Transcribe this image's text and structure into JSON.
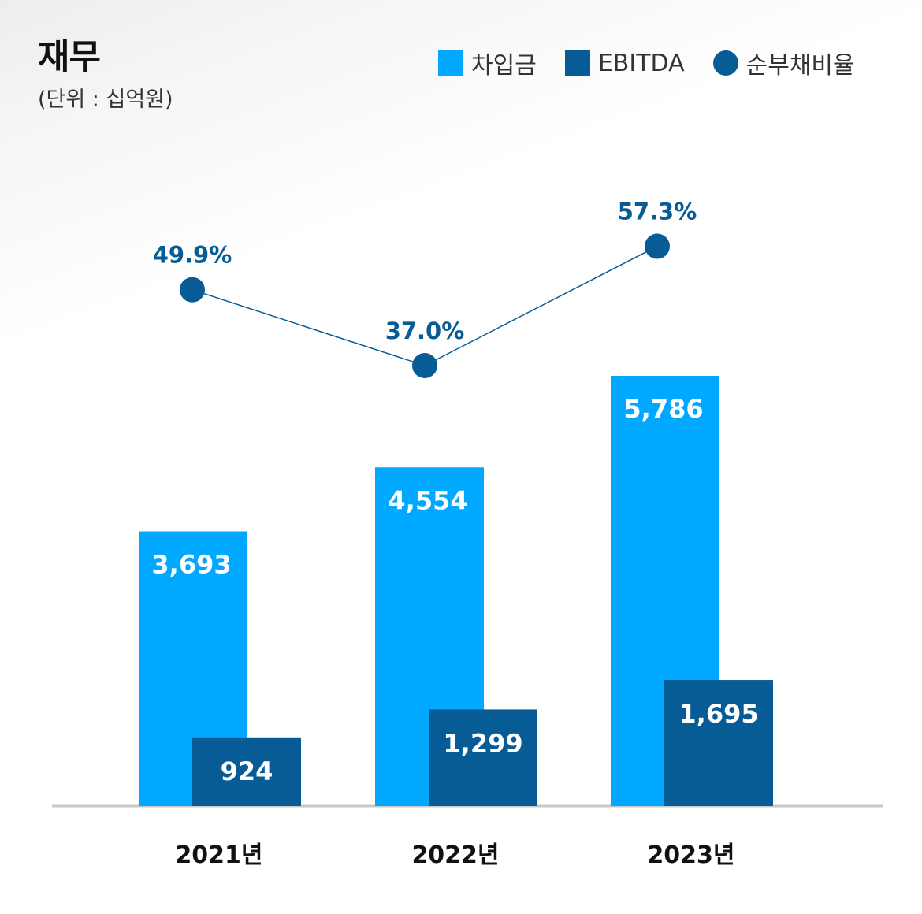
{
  "header": {
    "title": "재무",
    "unit": "(단위 : 십억원)"
  },
  "legend": {
    "items": [
      {
        "label": "차입금",
        "shape": "square",
        "color": "#00a9ff"
      },
      {
        "label": "EBITDA",
        "shape": "square",
        "color": "#075c95"
      },
      {
        "label": "순부채비율",
        "shape": "circle",
        "color": "#075c95"
      }
    ]
  },
  "colors": {
    "borrowings": "#00a9ff",
    "ebitda": "#075c95",
    "ratio": "#075c95",
    "axis": "#c8c8c8"
  },
  "chart_data": {
    "type": "bar",
    "title": "재무",
    "subtitle": "(단위 : 십억원)",
    "categories": [
      "2021년",
      "2022년",
      "2023년"
    ],
    "series": [
      {
        "name": "차입금",
        "type": "bar",
        "values": [
          3693,
          4554,
          5786
        ],
        "labels": [
          "3,693",
          "4,554",
          "5,786"
        ]
      },
      {
        "name": "EBITDA",
        "type": "bar",
        "values": [
          924,
          1299,
          1695
        ],
        "labels": [
          "924",
          "1,299",
          "1,695"
        ]
      },
      {
        "name": "순부채비율",
        "type": "line",
        "values": [
          49.9,
          37.0,
          57.3
        ],
        "labels": [
          "49.9%",
          "37.0%",
          "57.3%"
        ],
        "unit": "%"
      }
    ],
    "xlabel": "",
    "ylabel": "",
    "ylim": [
      0,
      6500
    ],
    "legend_position": "top-right",
    "grid": false
  }
}
